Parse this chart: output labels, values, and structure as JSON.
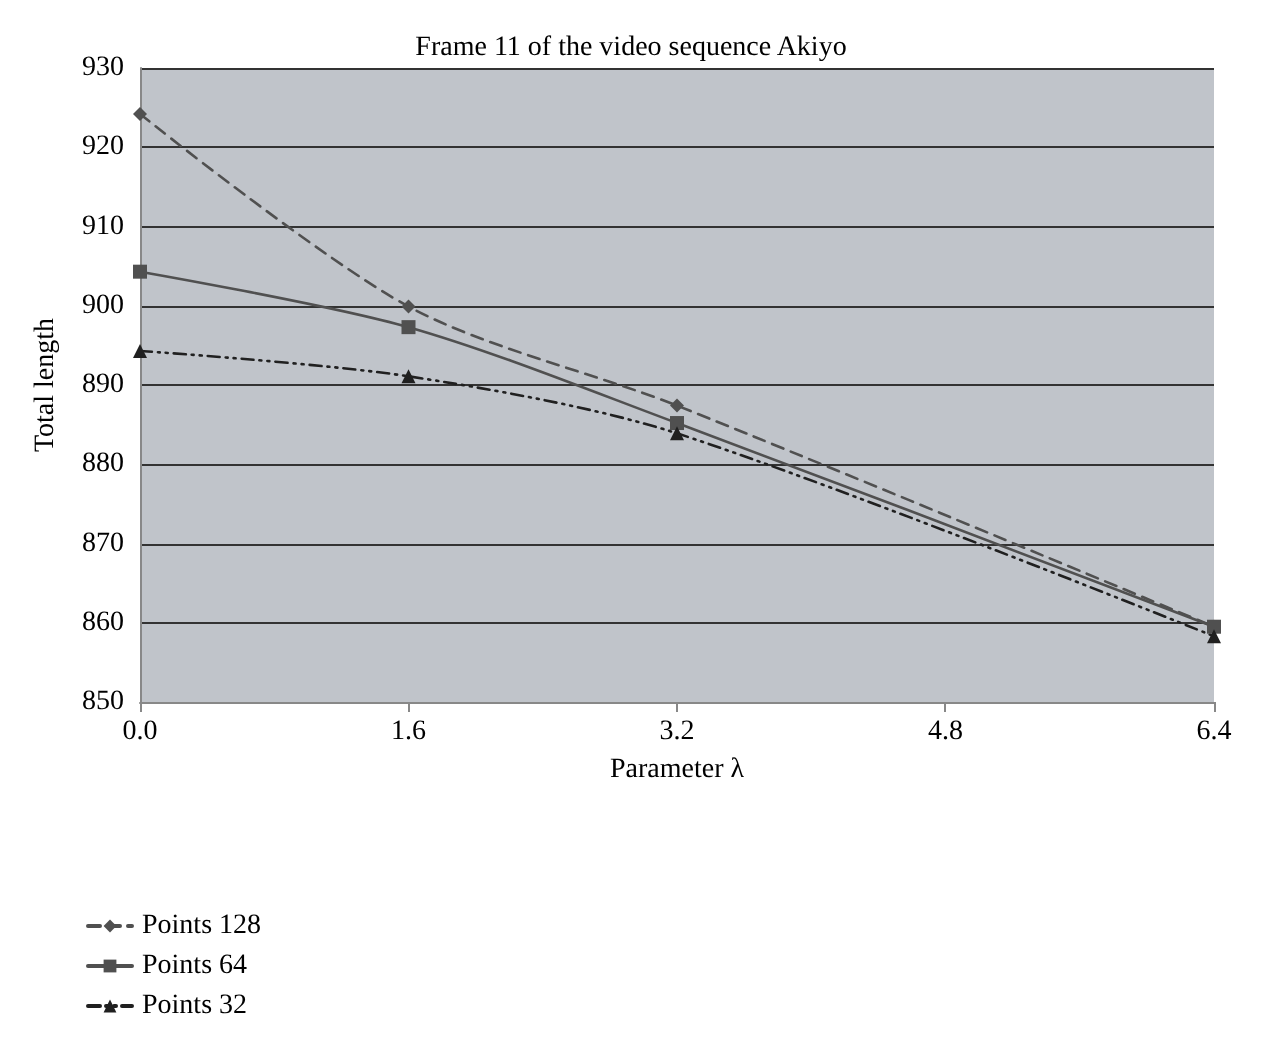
{
  "chart_data": {
    "type": "line",
    "title": "Frame 11 of the video sequence Akiyo",
    "xlabel": "Parameter λ",
    "ylabel": "Total length",
    "x": [
      0,
      1.6,
      3.2,
      6.4
    ],
    "series": [
      {
        "name": "Points 128",
        "color": "#505050",
        "marker": "diamond",
        "line_style": "dashed",
        "values": [
          924.2,
          899.9,
          887.4,
          859.5
        ]
      },
      {
        "name": "Points 64",
        "color": "#505050",
        "marker": "square",
        "line_style": "solid",
        "values": [
          904.3,
          897.3,
          885.2,
          859.5
        ]
      },
      {
        "name": "Points 32",
        "color": "#202020",
        "marker": "triangle",
        "line_style": "dotted",
        "values": [
          894.3,
          891.1,
          883.9,
          858.3
        ]
      }
    ],
    "xlim": [
      0,
      6.4
    ],
    "xticks": [
      {
        "value": 0,
        "label": "0.0"
      },
      1.6,
      3.2,
      4.8,
      6.4
    ],
    "ylim": [
      850,
      930
    ],
    "yticks": [
      850,
      860,
      870,
      880,
      890,
      900,
      910,
      920,
      930
    ],
    "grid": "y",
    "legend": "bottom left"
  }
}
